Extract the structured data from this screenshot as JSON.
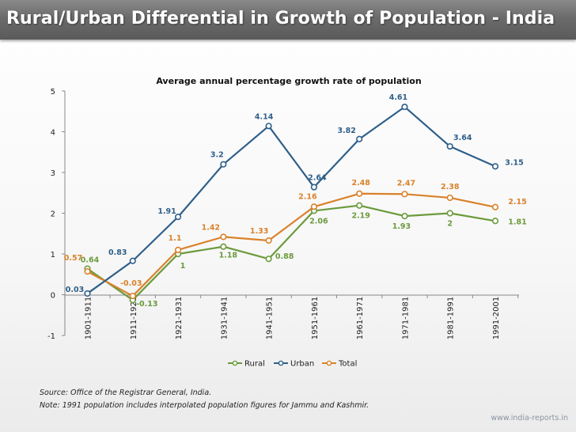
{
  "header": {
    "title": "Rural/Urban Differential in Growth of Population - India"
  },
  "chart_data": {
    "type": "line",
    "title": "Average annual percentage growth rate of population",
    "categories": [
      "1901-1911",
      "1911-1921",
      "1921-1931",
      "1931-1941",
      "1941-1951",
      "1951-1961",
      "1961-1971",
      "1971-1981",
      "1981-1991",
      "1991-2001"
    ],
    "series": [
      {
        "name": "Rural",
        "color": "#6b9a3c",
        "values": [
          0.64,
          -0.13,
          1,
          1.18,
          0.88,
          2.06,
          2.19,
          1.93,
          2,
          1.81
        ],
        "labels": [
          "0.64",
          "-0.13",
          "1",
          "1.18",
          "0.88",
          "2.06",
          "2.19",
          "1.93",
          "2",
          "1.81"
        ]
      },
      {
        "name": "Urban",
        "color": "#2f5f8a",
        "values": [
          0.03,
          0.83,
          1.91,
          3.2,
          4.14,
          2.64,
          3.82,
          4.61,
          3.64,
          3.15
        ],
        "labels": [
          "0.03",
          "0.83",
          "1.91",
          "3.2",
          "4.14",
          "2.64",
          "3.82",
          "4.61",
          "3.64",
          "3.15"
        ]
      },
      {
        "name": "Total",
        "color": "#d9822b",
        "values": [
          0.57,
          -0.03,
          1.1,
          1.42,
          1.33,
          2.16,
          2.48,
          2.47,
          2.38,
          2.15
        ],
        "labels": [
          "0.57",
          "-0.03",
          "1.1",
          "1.42",
          "1.33",
          "2.16",
          "2.48",
          "2.47",
          "2.38",
          "2.15"
        ]
      }
    ],
    "ylim": [
      -1,
      5
    ],
    "yticks": [
      "-1",
      "0",
      "1",
      "2",
      "3",
      "4",
      "5"
    ],
    "grid": false,
    "legend": "bottom"
  },
  "footer": {
    "source": "Source: Office of the Registrar General, India.",
    "note": "Note: 1991 population includes interpolated population figures for Jammu and Kashmir.",
    "brand": "www.india-reports.in"
  }
}
